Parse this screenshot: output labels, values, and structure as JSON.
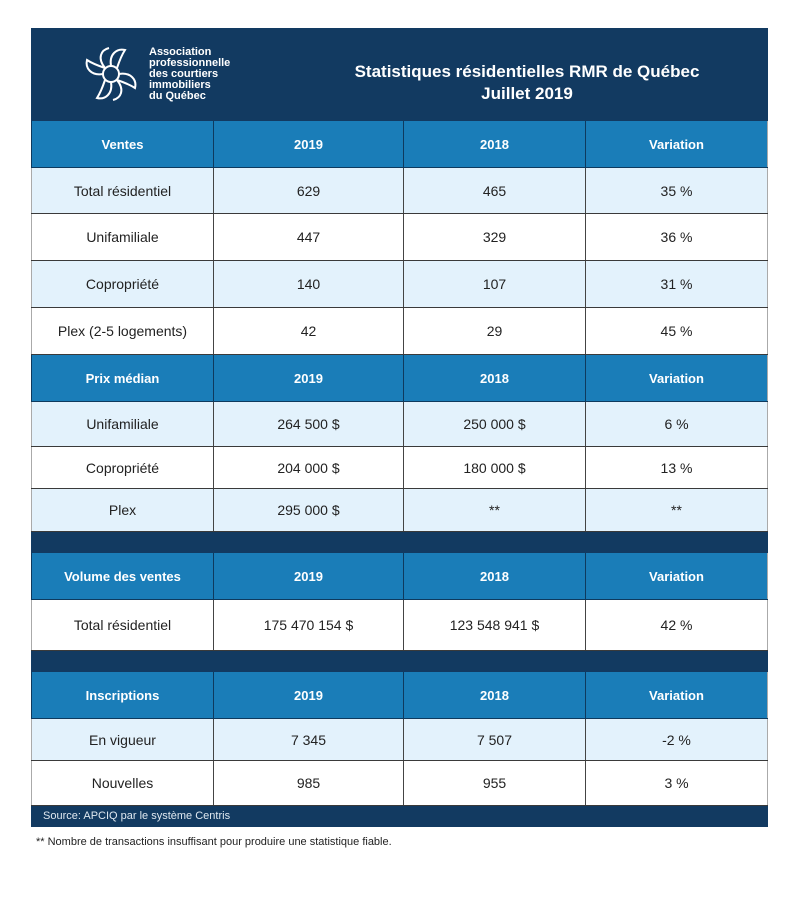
{
  "header": {
    "logo_text": [
      "Association",
      "professionnelle",
      "des courtiers",
      "immobiliers",
      "du Québec"
    ],
    "title_line1": "Statistiques résidentielles RMR de Québec",
    "title_line2": "Juillet 2019"
  },
  "colors": {
    "dark": "#123a61",
    "header_blue": "#1a7db8",
    "row_light": "#e3f2fc"
  },
  "sections": [
    {
      "headers": [
        "Ventes",
        "2019",
        "2018",
        "Variation"
      ],
      "rows": [
        [
          "Total résidentiel",
          "629",
          "465",
          "35 %"
        ],
        [
          "Unifamiliale",
          "447",
          "329",
          "36 %"
        ],
        [
          "Copropriété",
          "140",
          "107",
          "31 %"
        ],
        [
          "Plex (2-5 logements)",
          "42",
          "29",
          "45 %"
        ]
      ]
    },
    {
      "headers": [
        "Prix médian",
        "2019",
        "2018",
        "Variation"
      ],
      "rows": [
        [
          "Unifamiliale",
          "264 500  $",
          "250 000  $",
          "6 %"
        ],
        [
          "Copropriété",
          "204 000  $",
          "180 000  $",
          "13 %"
        ],
        [
          "Plex",
          "295 000  $",
          "**",
          "**"
        ]
      ]
    },
    {
      "headers": [
        "Volume des ventes",
        "2019",
        "2018",
        "Variation"
      ],
      "rows": [
        [
          "Total résidentiel",
          "175 470 154  $",
          "123 548 941  $",
          "42 %"
        ]
      ]
    },
    {
      "headers": [
        "Inscriptions",
        "2019",
        "2018",
        "Variation"
      ],
      "rows": [
        [
          "En vigueur",
          "7 345",
          "7 507",
          "-2 %"
        ],
        [
          "Nouvelles",
          "985",
          "955",
          "3 %"
        ]
      ]
    }
  ],
  "source": "Source: APCIQ par le système Centris",
  "footnote": "** Nombre de transactions insuffisant pour produire une statistique fiable."
}
